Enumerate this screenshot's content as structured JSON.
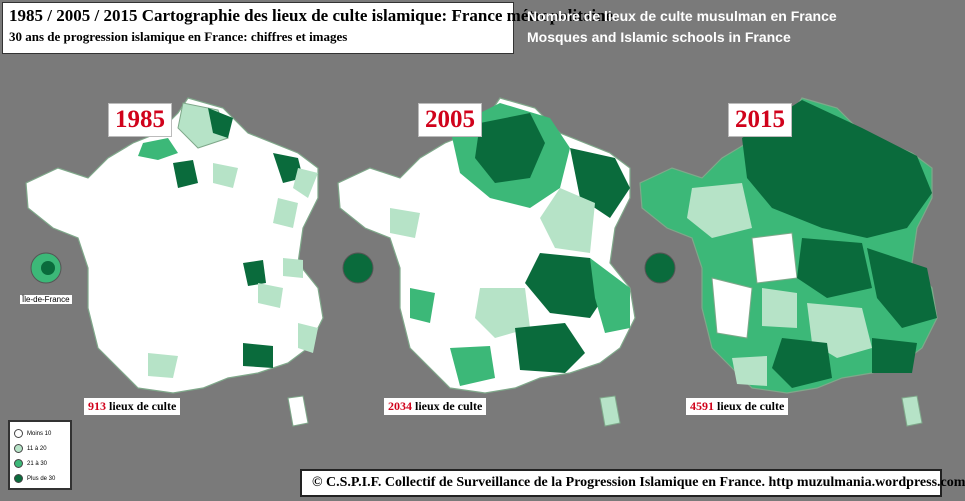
{
  "header": {
    "title_line1": "1985 / 2005 / 2015  Cartographie des lieux de culte islamique: France métropolitaine.",
    "title_line2": "30 ans de progression islamique en France: chiffres et images"
  },
  "description": {
    "line1": "Nombre de lieux de culte musulman en France",
    "line2": "Mosques and Islamic schools in France"
  },
  "maps": [
    {
      "year": "1985",
      "count": "913",
      "count_suffix": " lieux de culte"
    },
    {
      "year": "2005",
      "count": "2034",
      "count_suffix": " lieux de culte"
    },
    {
      "year": "2015",
      "count": "4591",
      "count_suffix": " lieux de culte"
    }
  ],
  "inset_label": "Île-de-France",
  "legend": [
    {
      "label": "Moins 10",
      "color": "#ffffff"
    },
    {
      "label": "11 à 20",
      "color": "#b6e3c7"
    },
    {
      "label": "21 à 30",
      "color": "#3cb878"
    },
    {
      "label": "Plus de 30",
      "color": "#0a6b3c"
    }
  ],
  "footer": "© C.S.P.I.F. Collectif de Surveillance de la Progression Islamique en France. http muzulmania.wordpress.com"
}
